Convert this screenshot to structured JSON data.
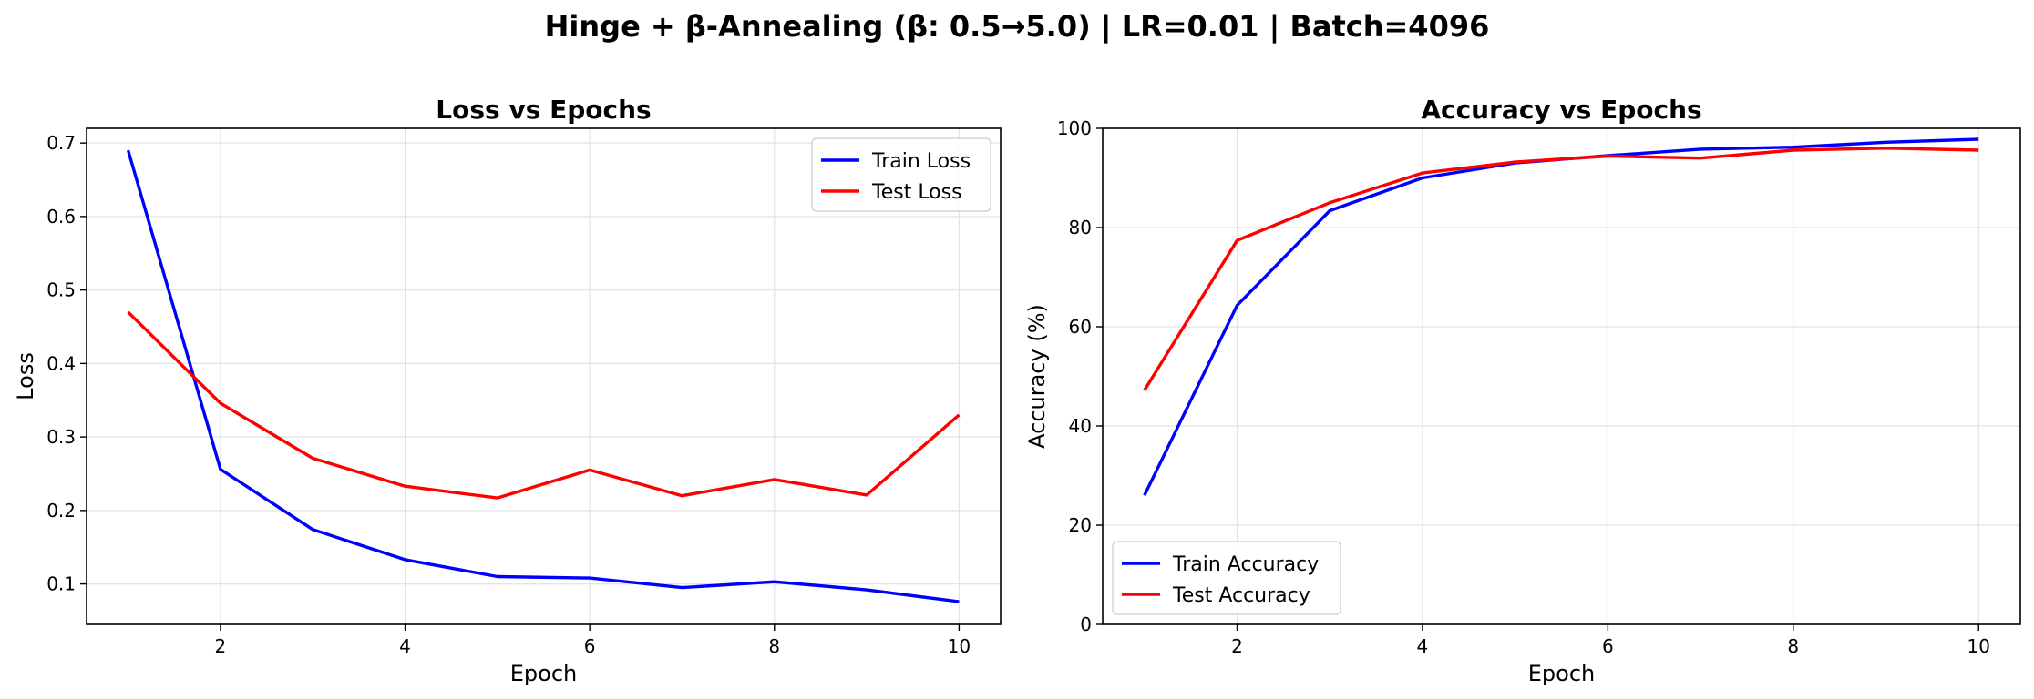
{
  "figure_title": "Hinge + β-Annealing (β: 0.5→5.0) | LR=0.01 | Batch=4096",
  "chart_data": [
    {
      "type": "line",
      "title": "Loss vs Epochs",
      "xlabel": "Epoch",
      "ylabel": "Loss",
      "x": [
        1,
        2,
        3,
        4,
        5,
        6,
        7,
        8,
        9,
        10
      ],
      "xlim": [
        0.55,
        10.45
      ],
      "ylim": [
        0.045,
        0.72
      ],
      "xticks": [
        2,
        4,
        6,
        8,
        10
      ],
      "yticks": [
        0.1,
        0.2,
        0.3,
        0.4,
        0.5,
        0.6,
        0.7
      ],
      "ytick_labels": [
        "0.1",
        "0.2",
        "0.3",
        "0.4",
        "0.5",
        "0.6",
        "0.7"
      ],
      "grid": true,
      "legend": "upper right",
      "series": [
        {
          "name": "Train Loss",
          "color": "#0000ff",
          "values": [
            0.69,
            0.256,
            0.174,
            0.133,
            0.11,
            0.108,
            0.095,
            0.103,
            0.092,
            0.076
          ]
        },
        {
          "name": "Test Loss",
          "color": "#ff0000",
          "values": [
            0.47,
            0.346,
            0.271,
            0.233,
            0.217,
            0.255,
            0.22,
            0.242,
            0.221,
            0.33
          ]
        }
      ]
    },
    {
      "type": "line",
      "title": "Accuracy vs Epochs",
      "xlabel": "Epoch",
      "ylabel": "Accuracy (%)",
      "x": [
        1,
        2,
        3,
        4,
        5,
        6,
        7,
        8,
        9,
        10
      ],
      "xlim": [
        0.55,
        10.45
      ],
      "ylim": [
        0,
        100
      ],
      "xticks": [
        2,
        4,
        6,
        8,
        10
      ],
      "yticks": [
        0,
        20,
        40,
        60,
        80,
        100
      ],
      "ytick_labels": [
        "0",
        "20",
        "40",
        "60",
        "80",
        "100"
      ],
      "grid": true,
      "legend": "lower left",
      "series": [
        {
          "name": "Train Accuracy",
          "color": "#0000ff",
          "values": [
            26.0,
            64.3,
            83.4,
            90.0,
            93.0,
            94.5,
            95.8,
            96.2,
            97.2,
            97.8
          ]
        },
        {
          "name": "Test Accuracy",
          "color": "#ff0000",
          "values": [
            47.2,
            77.4,
            85.0,
            91.0,
            93.2,
            94.4,
            94.0,
            95.6,
            96.0,
            95.6
          ]
        }
      ]
    }
  ]
}
